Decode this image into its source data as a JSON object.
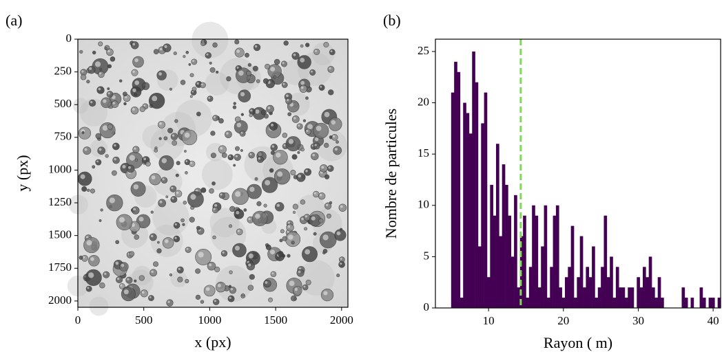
{
  "chart_data": [
    {
      "type": "image",
      "title": "(a)",
      "xlabel": "x (px)",
      "ylabel": "y (px)",
      "xlim": [
        0,
        2048
      ],
      "ylim": [
        0,
        2048
      ],
      "y_inverted": true,
      "xticks": [
        0,
        500,
        1000,
        1500,
        2000
      ],
      "yticks": [
        0,
        250,
        500,
        750,
        1000,
        1250,
        1500,
        1750,
        2000
      ]
    },
    {
      "type": "histogram",
      "title": "(b)",
      "xlabel": "Rayon (  m)",
      "ylabel": "Nombre de particules",
      "color": "#440154",
      "bins": [
        5,
        5.4,
        5.8,
        6.2,
        6.6,
        7,
        7.4,
        7.8,
        8.2,
        8.6,
        9,
        9.4,
        9.8,
        10.2,
        10.6,
        11,
        11.4,
        11.8,
        12.2,
        12.6,
        13,
        13.4,
        13.8,
        14.2,
        14.6,
        15,
        15.4,
        15.8,
        16.2,
        16.6,
        17,
        17.4,
        17.8,
        18.2,
        18.6,
        19,
        19.4,
        19.8,
        20.2,
        20.6,
        21,
        21.4,
        21.8,
        22.2,
        22.6,
        23,
        23.4,
        23.8,
        24.2,
        24.6,
        25,
        25.4,
        25.8,
        26.2,
        26.6,
        27,
        27.4,
        27.8,
        28.2,
        28.6,
        29,
        29.4,
        29.8,
        30.2,
        30.6,
        31,
        31.4,
        31.8,
        32.2,
        32.6,
        33,
        33.4,
        33.8,
        34.2,
        34.6,
        35,
        35.4,
        35.8,
        36.2,
        36.6,
        37,
        37.4,
        37.8,
        38.2,
        38.6,
        39,
        39.4,
        39.8,
        40.2,
        40.6,
        41
      ],
      "values": [
        21,
        24,
        23,
        1,
        20,
        19,
        17,
        25,
        22,
        6,
        18,
        21,
        3,
        12,
        9,
        16,
        7,
        14,
        12,
        9,
        5,
        11,
        2,
        7,
        9,
        1,
        4,
        10,
        9,
        2,
        6,
        10,
        1,
        4,
        9,
        10,
        2,
        1,
        3,
        4,
        8,
        1,
        3,
        7,
        2,
        4,
        3,
        6,
        1,
        2,
        4,
        9,
        3,
        5,
        1,
        4,
        2,
        2,
        1,
        2,
        2,
        0,
        3,
        2,
        4,
        3,
        5,
        2,
        1,
        3,
        1,
        0,
        0,
        0,
        0,
        0,
        0,
        2,
        1,
        0,
        1,
        0,
        0,
        2,
        1,
        0,
        1,
        1,
        0,
        1
      ],
      "vline": {
        "x": 14.3,
        "color": "#7ed957"
      },
      "xlim": [
        2.9,
        41
      ],
      "ylim": [
        0,
        26.2
      ],
      "xticks": [
        10,
        20,
        30,
        40
      ],
      "yticks": [
        0,
        5,
        10,
        15,
        20,
        25
      ]
    }
  ]
}
